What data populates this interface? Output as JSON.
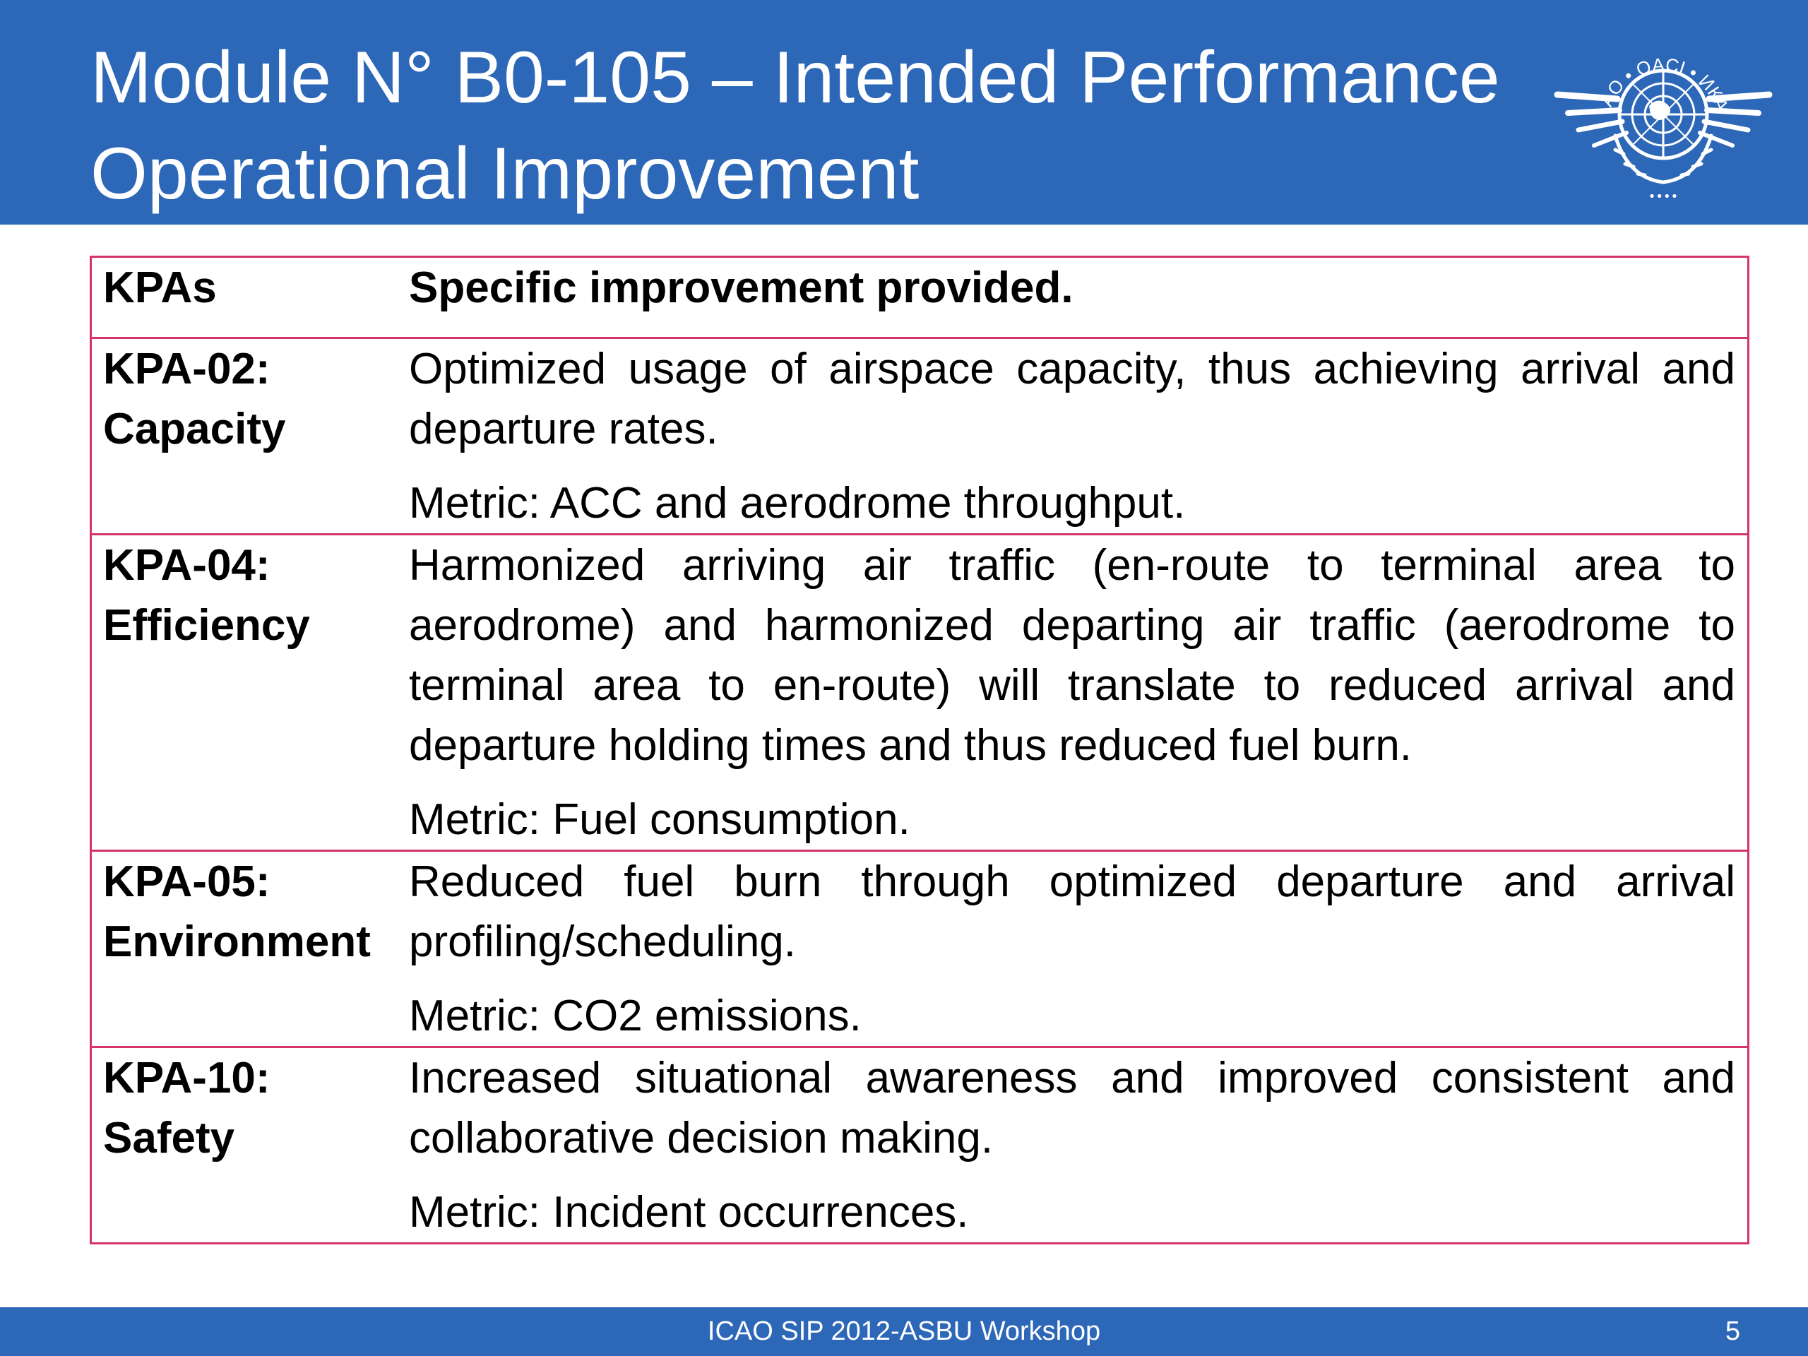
{
  "header": {
    "title_line1": "Module N° B0-105 – Intended Performance",
    "title_line2": "Operational Improvement",
    "logo_icon": "icao-emblem-icon",
    "logo_text": "ICAO • OACI • ИКАО"
  },
  "colors": {
    "header_bg": "#2c67b8",
    "table_border": "#d6336c",
    "text": "#000000"
  },
  "table": {
    "headers": [
      "KPAs",
      "Specific improvement provided."
    ],
    "rows": [
      {
        "kpa_id": "KPA-02:",
        "kpa_name": "Capacity",
        "description": "Optimized usage of airspace capacity, thus achieving arrival and departure rates.",
        "metric": "Metric: ACC and aerodrome throughput."
      },
      {
        "kpa_id": "KPA-04:",
        "kpa_name": "Efficiency",
        "description": "Harmonized arriving air traffic (en-route to terminal area to aerodrome) and harmonized departing air traffic (aerodrome to terminal area to en-route) will translate to reduced arrival and departure holding times and thus reduced fuel burn.",
        "metric": "Metric: Fuel consumption."
      },
      {
        "kpa_id": "KPA-05:",
        "kpa_name": "Environment",
        "description": "Reduced fuel burn through optimized departure and arrival profiling/scheduling.",
        "metric": "Metric: CO2 emissions."
      },
      {
        "kpa_id": "KPA-10:",
        "kpa_name": "Safety",
        "description": "Increased situational awareness and improved consistent and collaborative decision making.",
        "metric": "Metric: Incident occurrences."
      }
    ]
  },
  "footer": {
    "text": "ICAO SIP 2012-ASBU Workshop",
    "page_number": "5"
  }
}
